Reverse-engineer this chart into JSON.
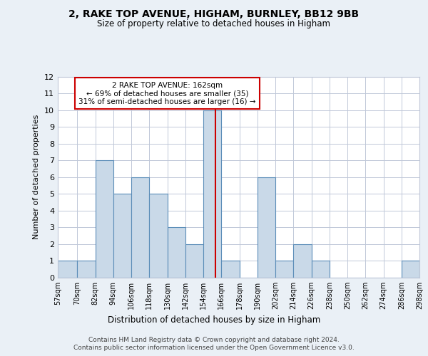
{
  "title1": "2, RAKE TOP AVENUE, HIGHAM, BURNLEY, BB12 9BB",
  "title2": "Size of property relative to detached houses in Higham",
  "xlabel": "Distribution of detached houses by size in Higham",
  "ylabel": "Number of detached properties",
  "bin_labels": [
    "57sqm",
    "70sqm",
    "82sqm",
    "94sqm",
    "106sqm",
    "118sqm",
    "130sqm",
    "142sqm",
    "154sqm",
    "166sqm",
    "178sqm",
    "190sqm",
    "202sqm",
    "214sqm",
    "226sqm",
    "238sqm",
    "250sqm",
    "262sqm",
    "274sqm",
    "286sqm",
    "298sqm"
  ],
  "bar_values": [
    1,
    1,
    7,
    5,
    6,
    5,
    3,
    2,
    10,
    1,
    0,
    6,
    1,
    2,
    1,
    0,
    0,
    0,
    0,
    1
  ],
  "bin_edges": [
    57,
    70,
    82,
    94,
    106,
    118,
    130,
    142,
    154,
    166,
    178,
    190,
    202,
    214,
    226,
    238,
    250,
    262,
    274,
    286,
    298
  ],
  "subject_value": 162,
  "annotation_text": "2 RAKE TOP AVENUE: 162sqm\n← 69% of detached houses are smaller (35)\n31% of semi-detached houses are larger (16) →",
  "bar_color": "#c9d9e8",
  "bar_edge_color": "#5b8db8",
  "vline_color": "#cc0000",
  "annotation_box_edge": "#cc0000",
  "ylim": [
    0,
    12
  ],
  "yticks": [
    0,
    1,
    2,
    3,
    4,
    5,
    6,
    7,
    8,
    9,
    10,
    11,
    12
  ],
  "footer1": "Contains HM Land Registry data © Crown copyright and database right 2024.",
  "footer2": "Contains public sector information licensed under the Open Government Licence v3.0.",
  "background_color": "#eaf0f6",
  "plot_background": "#ffffff"
}
